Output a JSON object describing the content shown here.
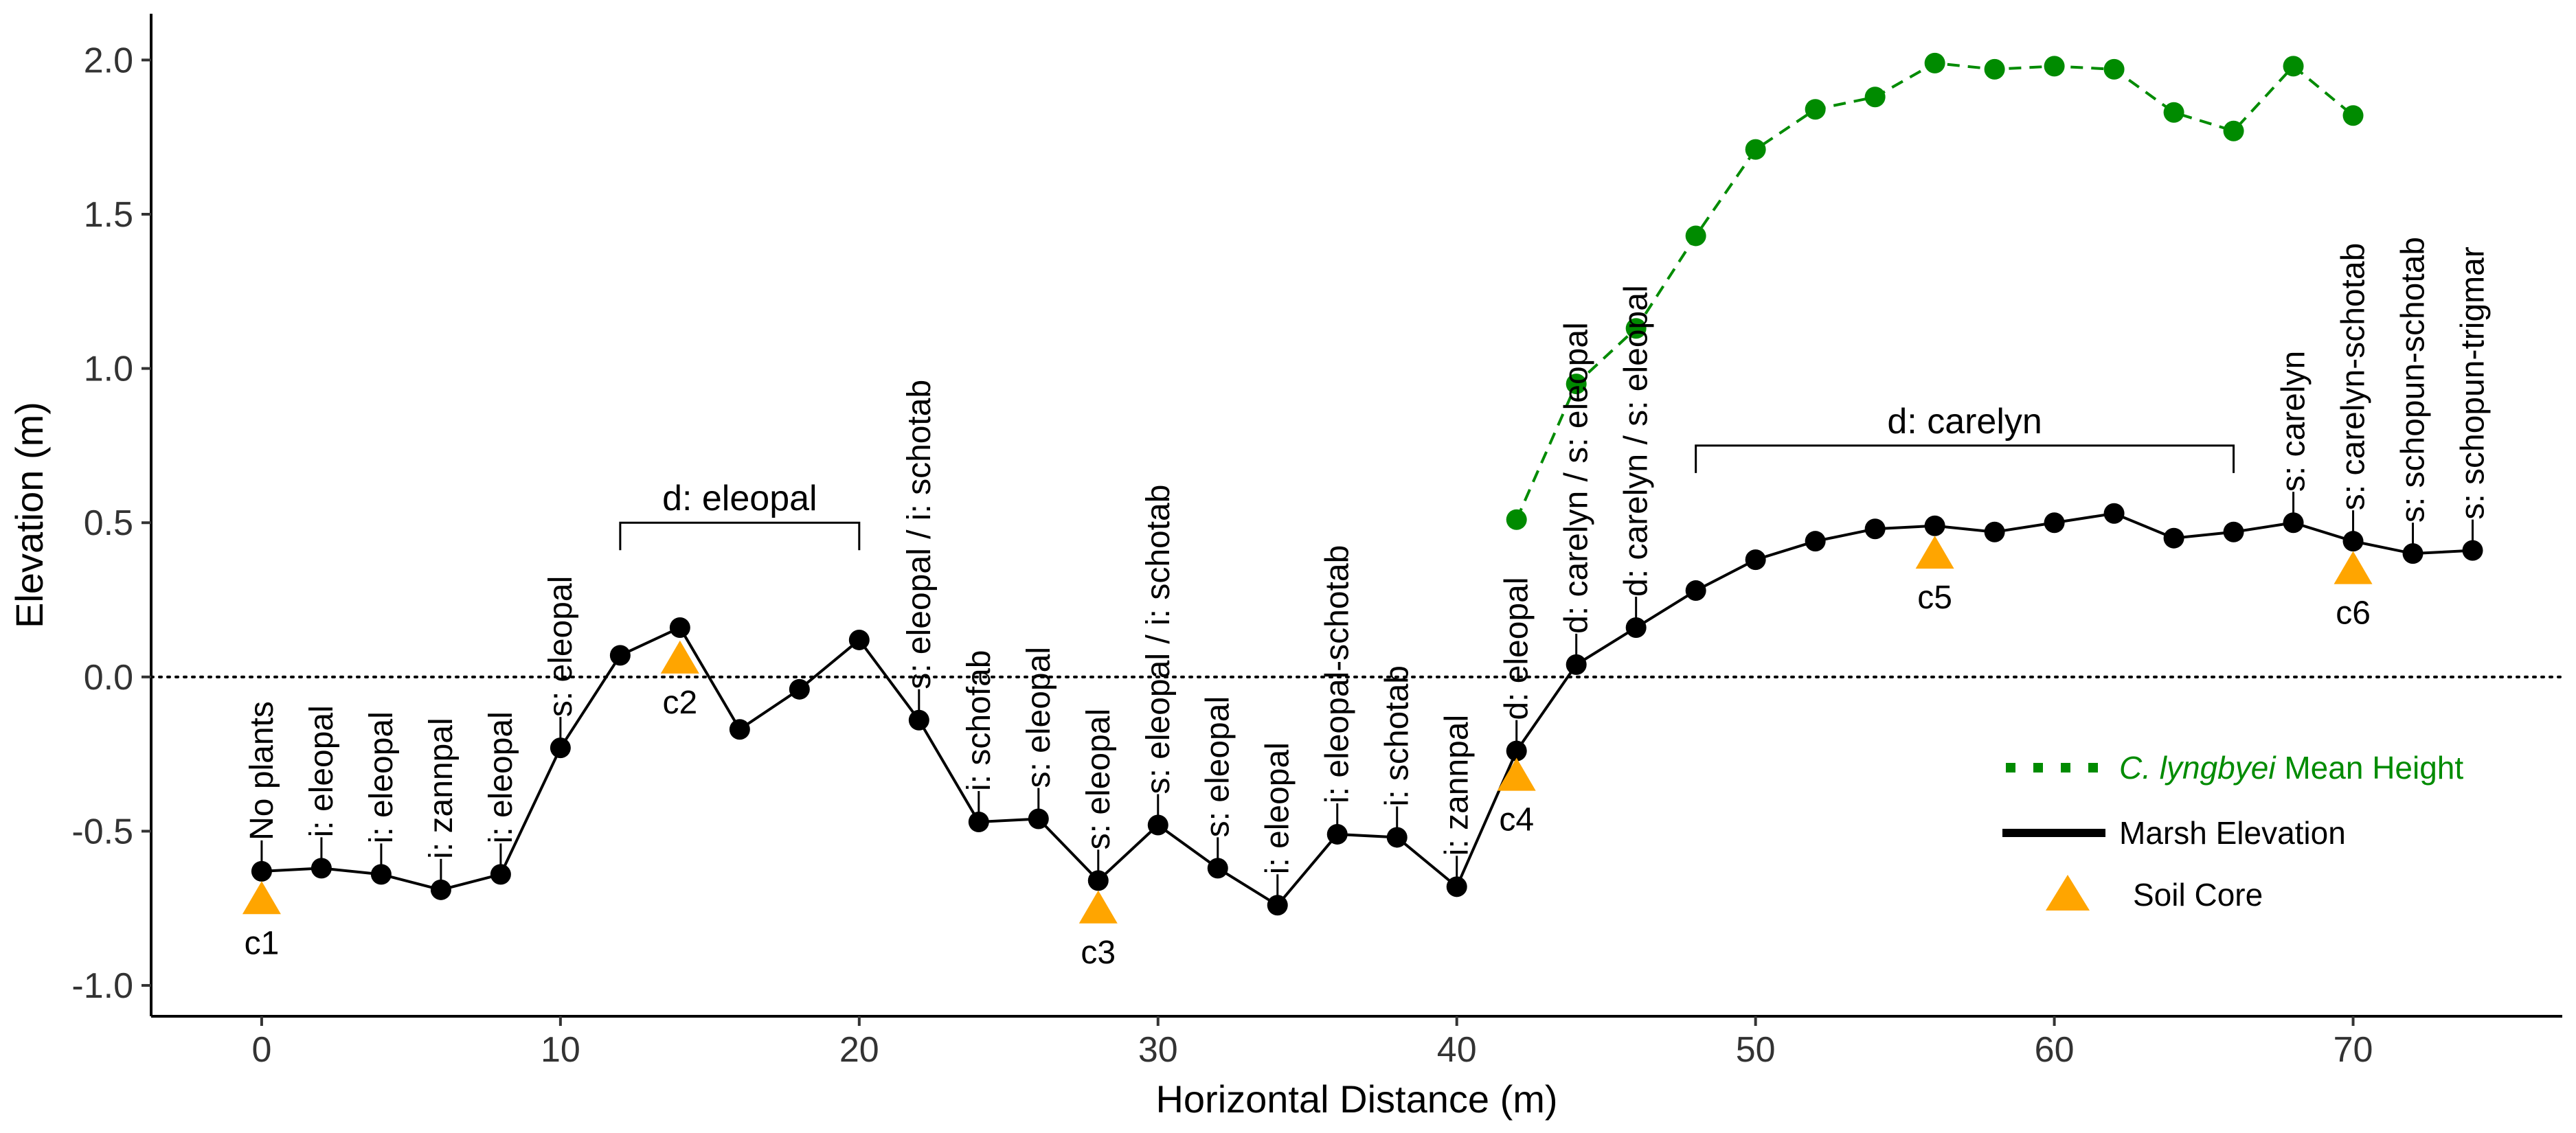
{
  "chart_data": {
    "type": "line",
    "title": "",
    "xlabel": "Horizontal Distance (m)",
    "ylabel": "Elevation (m)",
    "xlim": [
      -3.7,
      77
    ],
    "ylim": [
      -1.1,
      2.15
    ],
    "x_ticks": [
      0,
      10,
      20,
      30,
      40,
      50,
      60,
      70
    ],
    "y_ticks": [
      -1.0,
      -0.5,
      0.0,
      0.5,
      1.0,
      1.5,
      2.0
    ],
    "y_tick_labels": [
      "-1.0",
      "-0.5",
      "0.0",
      "0.5",
      "1.0",
      "1.5",
      "2.0"
    ],
    "grid": false,
    "reference_line": {
      "y": 0,
      "style": "dotted"
    },
    "series": [
      {
        "name": "Marsh Elevation",
        "color": "#000000",
        "style": "solid",
        "x": [
          0,
          2,
          4,
          6,
          8,
          10,
          12,
          14,
          16,
          18,
          20,
          22,
          24,
          26,
          28,
          30,
          32,
          34,
          36,
          38,
          40,
          42,
          44,
          46,
          48,
          50,
          52,
          54,
          56,
          58,
          60,
          62,
          64,
          66,
          68,
          70,
          72,
          74
        ],
        "y": [
          -0.63,
          -0.62,
          -0.64,
          -0.69,
          -0.64,
          -0.23,
          0.07,
          0.16,
          -0.17,
          -0.04,
          0.12,
          -0.14,
          -0.47,
          -0.46,
          -0.66,
          -0.48,
          -0.62,
          -0.74,
          -0.51,
          -0.52,
          -0.68,
          -0.24,
          0.04,
          0.16,
          0.28,
          0.38,
          0.44,
          0.48,
          0.49,
          0.47,
          0.5,
          0.53,
          0.45,
          0.47,
          0.5,
          0.44,
          0.4,
          0.41
        ]
      },
      {
        "name_prefix": "C. lyngbyei",
        "name_suffix": " Mean Height",
        "color": "#008B00",
        "style": "dashed",
        "x": [
          42,
          44,
          46,
          48,
          50,
          52,
          54,
          56,
          58,
          60,
          62,
          64,
          66,
          68,
          70
        ],
        "y": [
          0.51,
          0.95,
          1.13,
          1.43,
          1.71,
          1.84,
          1.88,
          1.99,
          1.97,
          1.98,
          1.97,
          1.83,
          1.77,
          1.98,
          1.82
        ]
      }
    ],
    "soil_cores": {
      "name": "Soil Core",
      "color": "#FFA500",
      "points": [
        {
          "label": "c1",
          "x": 0,
          "y": -0.72
        },
        {
          "label": "c2",
          "x": 14,
          "y": 0.06
        },
        {
          "label": "c3",
          "x": 28,
          "y": -0.75
        },
        {
          "label": "c4",
          "x": 42,
          "y": -0.32
        },
        {
          "label": "c5",
          "x": 56,
          "y": 0.4
        },
        {
          "label": "c6",
          "x": 70,
          "y": 0.35
        }
      ]
    },
    "annotations": [
      {
        "x": 0,
        "text": "No plants"
      },
      {
        "x": 2,
        "text": "i: eleopal"
      },
      {
        "x": 4,
        "text": "i: eleopal"
      },
      {
        "x": 6,
        "text": "i: zannpal"
      },
      {
        "x": 8,
        "text": "i: eleopal"
      },
      {
        "x": 10,
        "text": "s: eleopal"
      },
      {
        "x": 22,
        "text": "s: eleopal / i: schotab"
      },
      {
        "x": 24,
        "text": "i: schofab"
      },
      {
        "x": 26,
        "text": "s: eleopal"
      },
      {
        "x": 28,
        "text": "s: eleopal"
      },
      {
        "x": 30,
        "text": "s: eleopal / i: schotab"
      },
      {
        "x": 32,
        "text": "s: eleopal"
      },
      {
        "x": 34,
        "text": "i: eleopal"
      },
      {
        "x": 36,
        "text": "i: eleopal-schotab"
      },
      {
        "x": 38,
        "text": "i: schotab"
      },
      {
        "x": 40,
        "text": "i: zannpal"
      },
      {
        "x": 42,
        "text": "d: eleopal"
      },
      {
        "x": 44,
        "text": "d: carelyn / s: eleopal"
      },
      {
        "x": 46,
        "text": "d: carelyn / s: eleopal"
      },
      {
        "x": 68,
        "text": "s: carelyn"
      },
      {
        "x": 70,
        "text": "s: carelyn-schotab"
      },
      {
        "x": 72,
        "text": "s: schopun-schotab"
      },
      {
        "x": 74,
        "text": "s: schopun-trigmar"
      }
    ],
    "brackets": [
      {
        "x0": 12,
        "x1": 20,
        "y": 0.5,
        "label": "d: eleopal"
      },
      {
        "x0": 48,
        "x1": 66,
        "y": 0.75,
        "label": "d: carelyn"
      }
    ],
    "legend": {
      "placement": "bottom-right",
      "entries": [
        {
          "key": "lyngbyei"
        },
        {
          "key": "marsh"
        },
        {
          "key": "cores"
        }
      ]
    }
  }
}
